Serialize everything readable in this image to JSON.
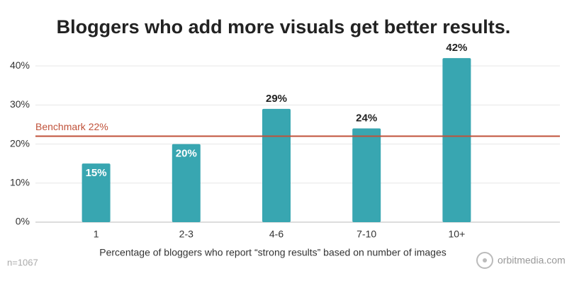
{
  "chart_data": {
    "type": "bar",
    "title": "Bloggers who add more visuals get better results.",
    "x_label": "Percentage of bloggers who report “strong results” based on number of images",
    "categories": [
      "1",
      "2-3",
      "4-6",
      "7-10",
      "10+"
    ],
    "values": [
      15,
      20,
      29,
      24,
      42
    ],
    "value_labels": [
      "15%",
      "20%",
      "29%",
      "24%",
      "42%"
    ],
    "color": "#38a6b1",
    "ylim": [
      0,
      46
    ],
    "yticks": [
      {
        "value": 0,
        "label": "0%"
      },
      {
        "value": 10,
        "label": "10%"
      },
      {
        "value": 20,
        "label": "20%"
      },
      {
        "value": 30,
        "label": "30%"
      },
      {
        "value": 40,
        "label": "40%"
      }
    ],
    "grid": true,
    "benchmark": {
      "value": 22,
      "label": "Benchmark 22%",
      "color": "#c0523a"
    },
    "note": "n=1067",
    "source": "orbitmedia.com"
  }
}
